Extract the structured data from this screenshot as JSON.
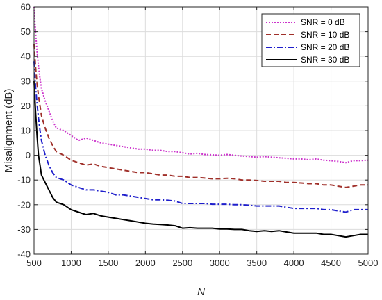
{
  "chart_data": {
    "type": "line",
    "xlabel": "N",
    "ylabel": "Misalignment (dB)",
    "xlim": [
      500,
      5000
    ],
    "ylim": [
      -40,
      60
    ],
    "x_ticks": [
      "500",
      "1000",
      "1500",
      "2000",
      "2500",
      "3000",
      "3500",
      "4000",
      "4500",
      "5000"
    ],
    "y_ticks": [
      "-40",
      "-30",
      "-20",
      "-10",
      "0",
      "10",
      "20",
      "30",
      "40",
      "50",
      "60"
    ],
    "x_tick_values": [
      500,
      1000,
      1500,
      2000,
      2500,
      3000,
      3500,
      4000,
      4500,
      5000
    ],
    "y_tick_values": [
      -40,
      -30,
      -20,
      -10,
      0,
      10,
      20,
      30,
      40,
      50,
      60
    ],
    "grid": true,
    "legend_position": "top-right",
    "x": [
      500,
      520,
      540,
      560,
      580,
      600,
      650,
      700,
      750,
      800,
      900,
      1000,
      1100,
      1200,
      1300,
      1400,
      1500,
      1600,
      1700,
      1800,
      1900,
      2000,
      2100,
      2200,
      2300,
      2400,
      2500,
      2600,
      2700,
      2800,
      2900,
      3000,
      3100,
      3200,
      3300,
      3400,
      3500,
      3600,
      3700,
      3800,
      3900,
      4000,
      4100,
      4200,
      4300,
      4400,
      4500,
      4600,
      4700,
      4800,
      4900,
      5000
    ],
    "series": [
      {
        "name": "SNR = 0 dB",
        "color": "#cc33cc",
        "style": "dotted",
        "values": [
          60,
          50,
          42,
          36,
          31,
          27,
          22,
          18,
          14,
          11,
          10,
          8,
          6,
          7,
          6,
          5,
          4.5,
          4,
          3.5,
          3,
          2.5,
          2.5,
          2,
          2,
          1.5,
          1.5,
          1,
          0.5,
          0.8,
          0.3,
          0.2,
          0,
          0.3,
          0,
          -0.3,
          -0.5,
          -0.8,
          -0.5,
          -0.8,
          -1,
          -1.2,
          -1.5,
          -1.5,
          -1.8,
          -1.5,
          -2,
          -2.2,
          -2.5,
          -3,
          -2.2,
          -2.2,
          -2
        ]
      },
      {
        "name": "SNR = 10 dB",
        "color": "#a0302a",
        "style": "dashed",
        "values": [
          45,
          36,
          29,
          24,
          20,
          16,
          11,
          7,
          4,
          1.5,
          0,
          -2,
          -3,
          -4,
          -3.5,
          -4.5,
          -5,
          -5.5,
          -6,
          -6.5,
          -7,
          -7,
          -7.5,
          -8,
          -8,
          -8.5,
          -8.5,
          -9,
          -9,
          -9.2,
          -9.5,
          -9.5,
          -9.3,
          -9.5,
          -10,
          -10,
          -10.2,
          -10.5,
          -10.5,
          -10.5,
          -11,
          -11,
          -11.2,
          -11.5,
          -11.5,
          -12,
          -12,
          -12.5,
          -13,
          -12.5,
          -12,
          -12
        ]
      },
      {
        "name": "SNR = 20 dB",
        "color": "#1f1fcc",
        "style": "dashdot",
        "values": [
          38,
          28,
          21,
          15,
          10,
          6,
          0,
          -4,
          -7,
          -9,
          -10,
          -12,
          -13,
          -14,
          -14,
          -14.5,
          -15,
          -16,
          -16,
          -16.5,
          -17,
          -17.5,
          -18,
          -18,
          -18.2,
          -18.5,
          -19.5,
          -19.5,
          -19.5,
          -19.5,
          -19.8,
          -19.8,
          -19.8,
          -20,
          -20,
          -20.2,
          -20.5,
          -20.5,
          -20.5,
          -20.5,
          -21,
          -21.5,
          -21.5,
          -21.5,
          -21.5,
          -22,
          -22,
          -22.5,
          -23,
          -22,
          -22,
          -22
        ]
      },
      {
        "name": "SNR = 30 dB",
        "color": "#000000",
        "style": "solid",
        "values": [
          30,
          18,
          8,
          0,
          -4,
          -8,
          -11,
          -14,
          -17,
          -19,
          -20,
          -22,
          -23,
          -24,
          -23.5,
          -24.5,
          -25,
          -25.5,
          -26,
          -26.5,
          -27,
          -27.5,
          -27.8,
          -28,
          -28.2,
          -28.5,
          -29.5,
          -29.3,
          -29.5,
          -29.5,
          -29.5,
          -29.8,
          -29.8,
          -30,
          -30,
          -30.5,
          -30.8,
          -30.5,
          -30.8,
          -30.5,
          -31,
          -31.5,
          -31.5,
          -31.5,
          -31.5,
          -32,
          -32,
          -32.5,
          -33,
          -32.5,
          -32,
          -32
        ]
      }
    ]
  }
}
